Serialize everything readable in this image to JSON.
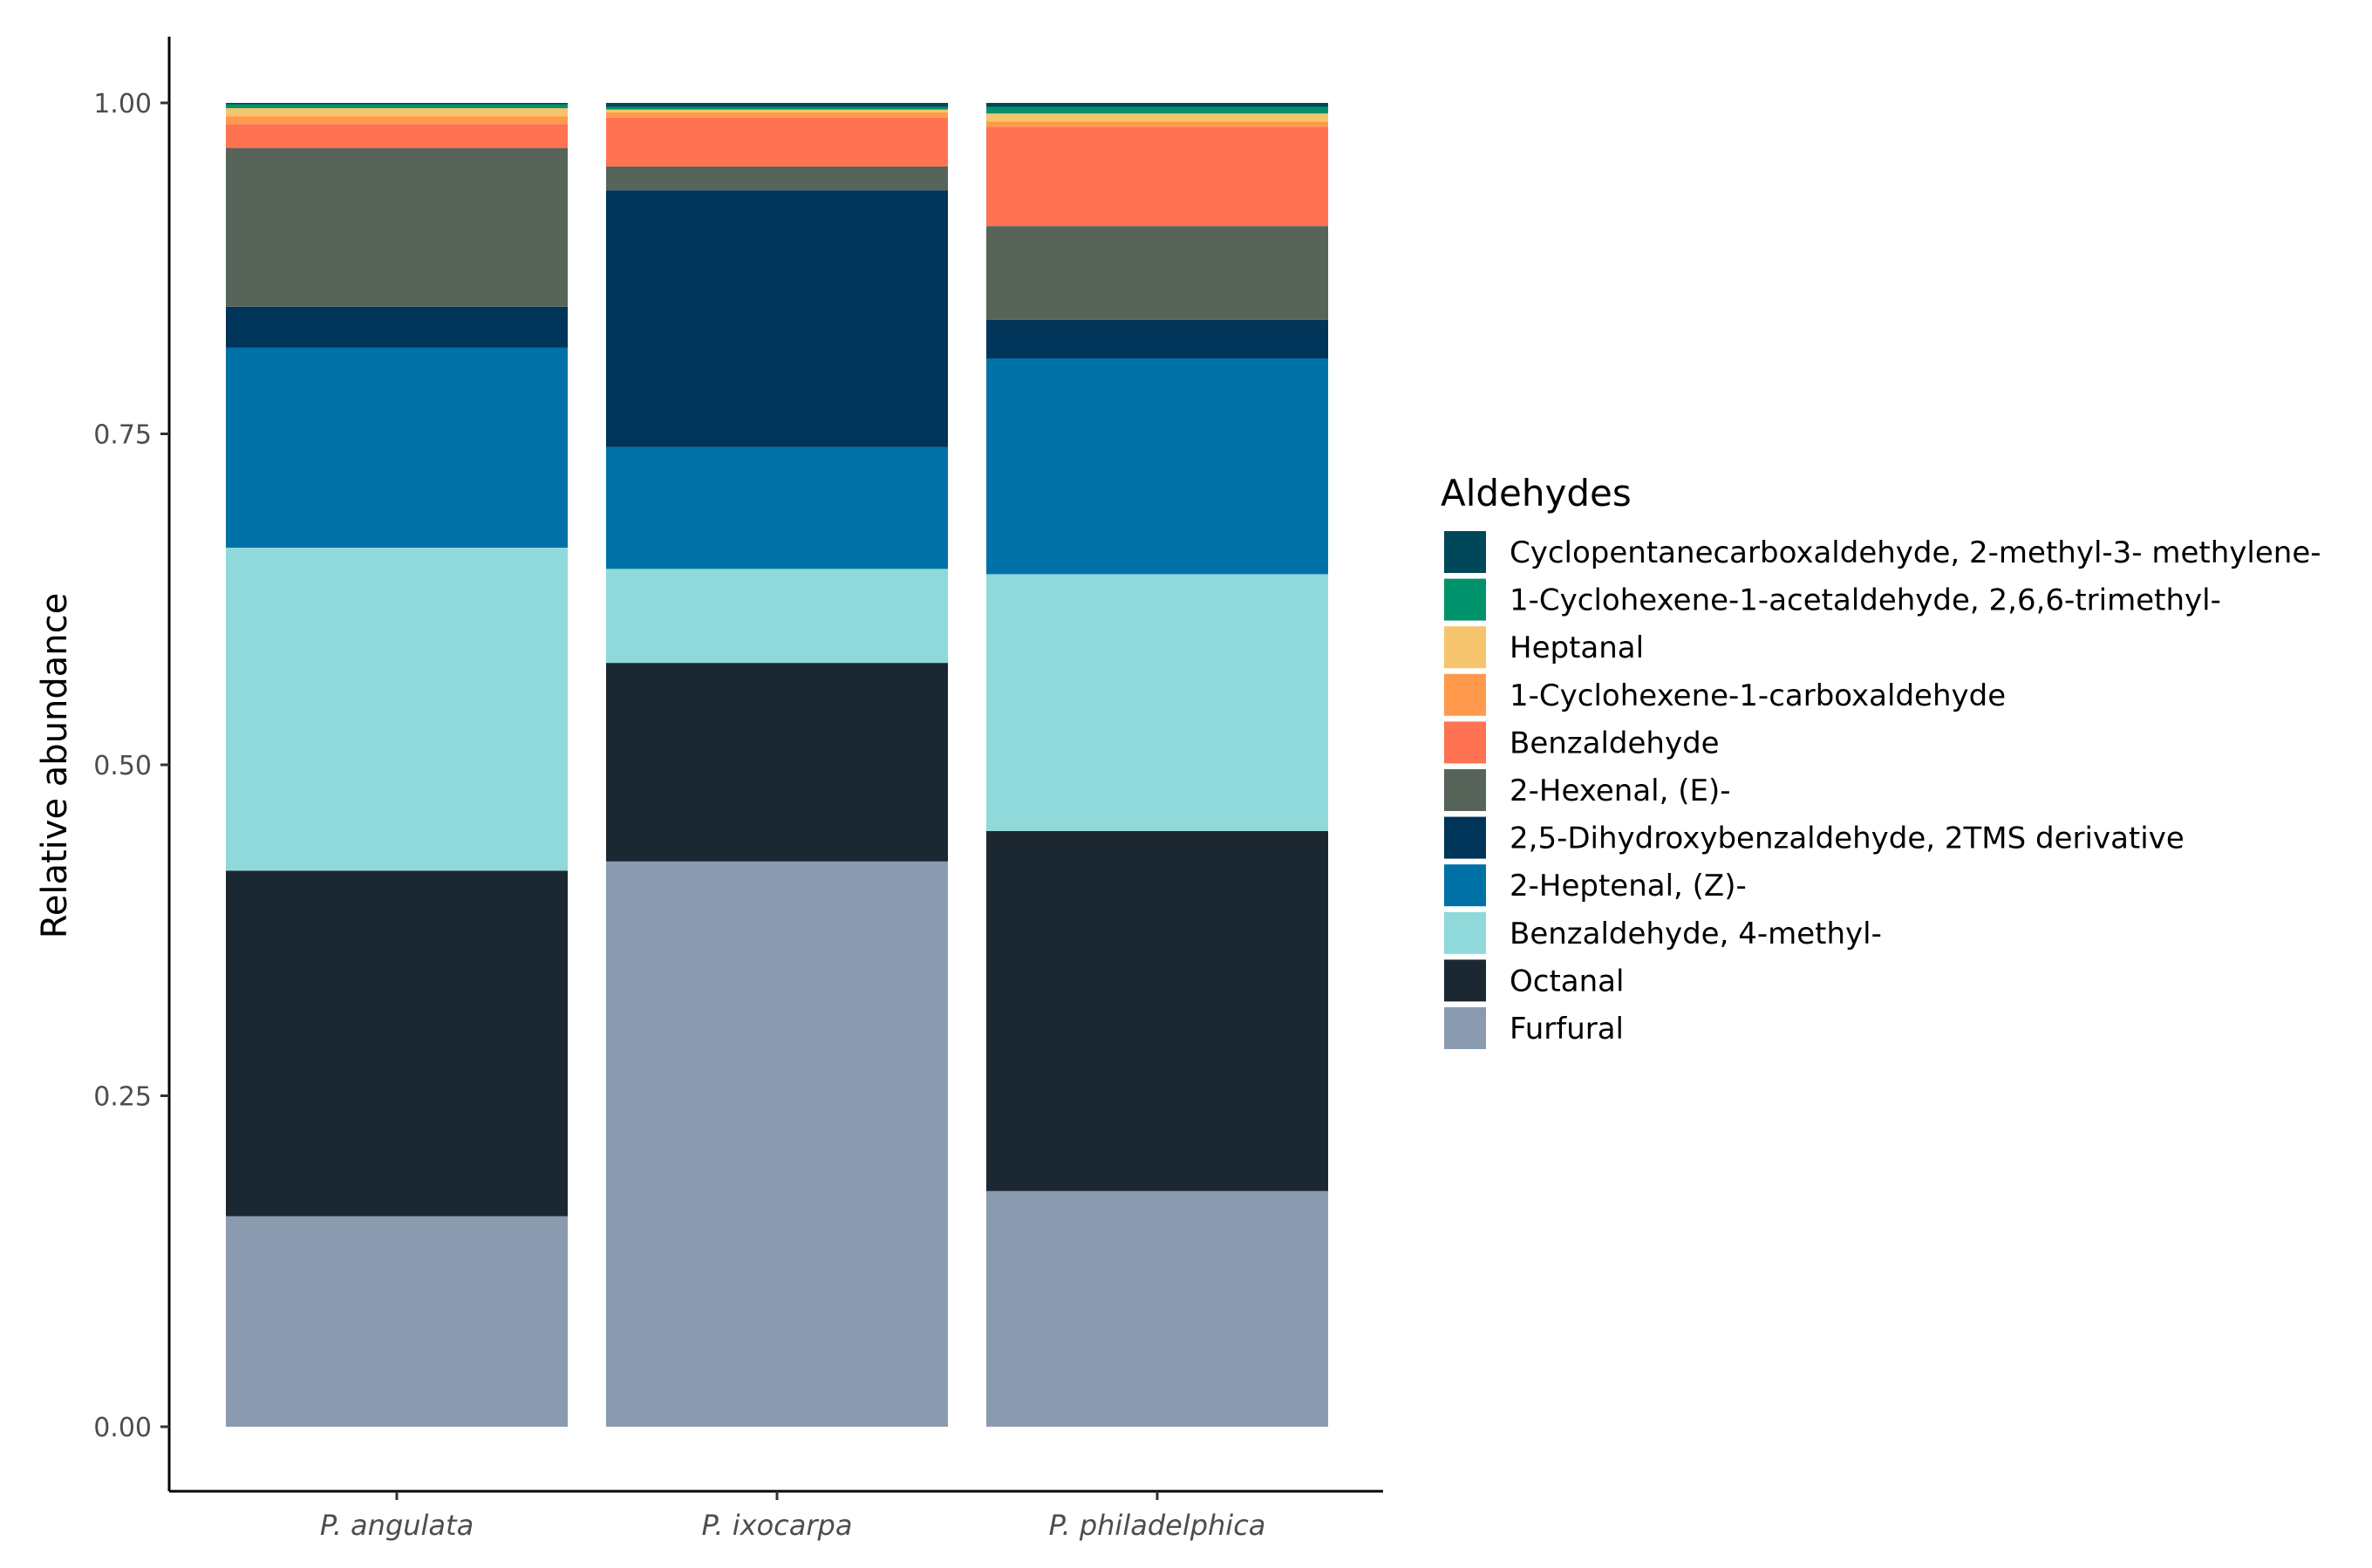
{
  "chart_data": {
    "type": "bar",
    "stacked": true,
    "normalized": true,
    "title": "",
    "xlabel": "",
    "ylabel": "Relative abundance",
    "ylim": [
      0,
      1
    ],
    "y_ticks": [
      "0.00",
      "0.25",
      "0.50",
      "0.75",
      "1.00"
    ],
    "y_tick_values": [
      0,
      0.25,
      0.5,
      0.75,
      1.0
    ],
    "categories": [
      "P. angulata",
      "P. ixocarpa",
      "P. philadelphica"
    ],
    "legend_title": "Aldehydes",
    "legend_position": "right",
    "series": [
      {
        "name": "Furfural",
        "color": "#8a9bb0",
        "values": [
          0.159,
          0.427,
          0.178
        ]
      },
      {
        "name": "Octanal",
        "color": "#1c2831",
        "values": [
          0.261,
          0.15,
          0.272
        ]
      },
      {
        "name": "Benzaldehyde, 4-methyl-",
        "color": "#8fd9db",
        "values": [
          0.244,
          0.071,
          0.194
        ]
      },
      {
        "name": "2-Heptenal, (Z)-",
        "color": "#0071a7",
        "values": [
          0.151,
          0.092,
          0.163
        ]
      },
      {
        "name": "2,5-Dihydroxybenzaldehyde, 2TMS derivative",
        "color": "#003459",
        "values": [
          0.031,
          0.194,
          0.029
        ]
      },
      {
        "name": "2-Hexenal, (E)-",
        "color": "#56645a",
        "values": [
          0.12,
          0.018,
          0.071
        ]
      },
      {
        "name": "Benzaldehyde",
        "color": "#ff7252",
        "values": [
          0.018,
          0.037,
          0.075
        ]
      },
      {
        "name": "1-Cyclohexene-1-carboxaldehyde",
        "color": "#ff9a4d",
        "values": [
          0.006,
          0.004,
          0.004
        ]
      },
      {
        "name": "Heptanal",
        "color": "#f6c46c",
        "values": [
          0.006,
          0.002,
          0.006
        ]
      },
      {
        "name": "1-Cyclohexene-1-acetaldehyde, 2,6,6-trimethyl-",
        "color": "#00936b",
        "values": [
          0.003,
          0.002,
          0.005
        ]
      },
      {
        "name": "Cyclopentanecarboxaldehyde, 2-methyl-3- methylene-",
        "color": "#004759",
        "values": [
          0.001,
          0.003,
          0.003
        ]
      }
    ]
  }
}
